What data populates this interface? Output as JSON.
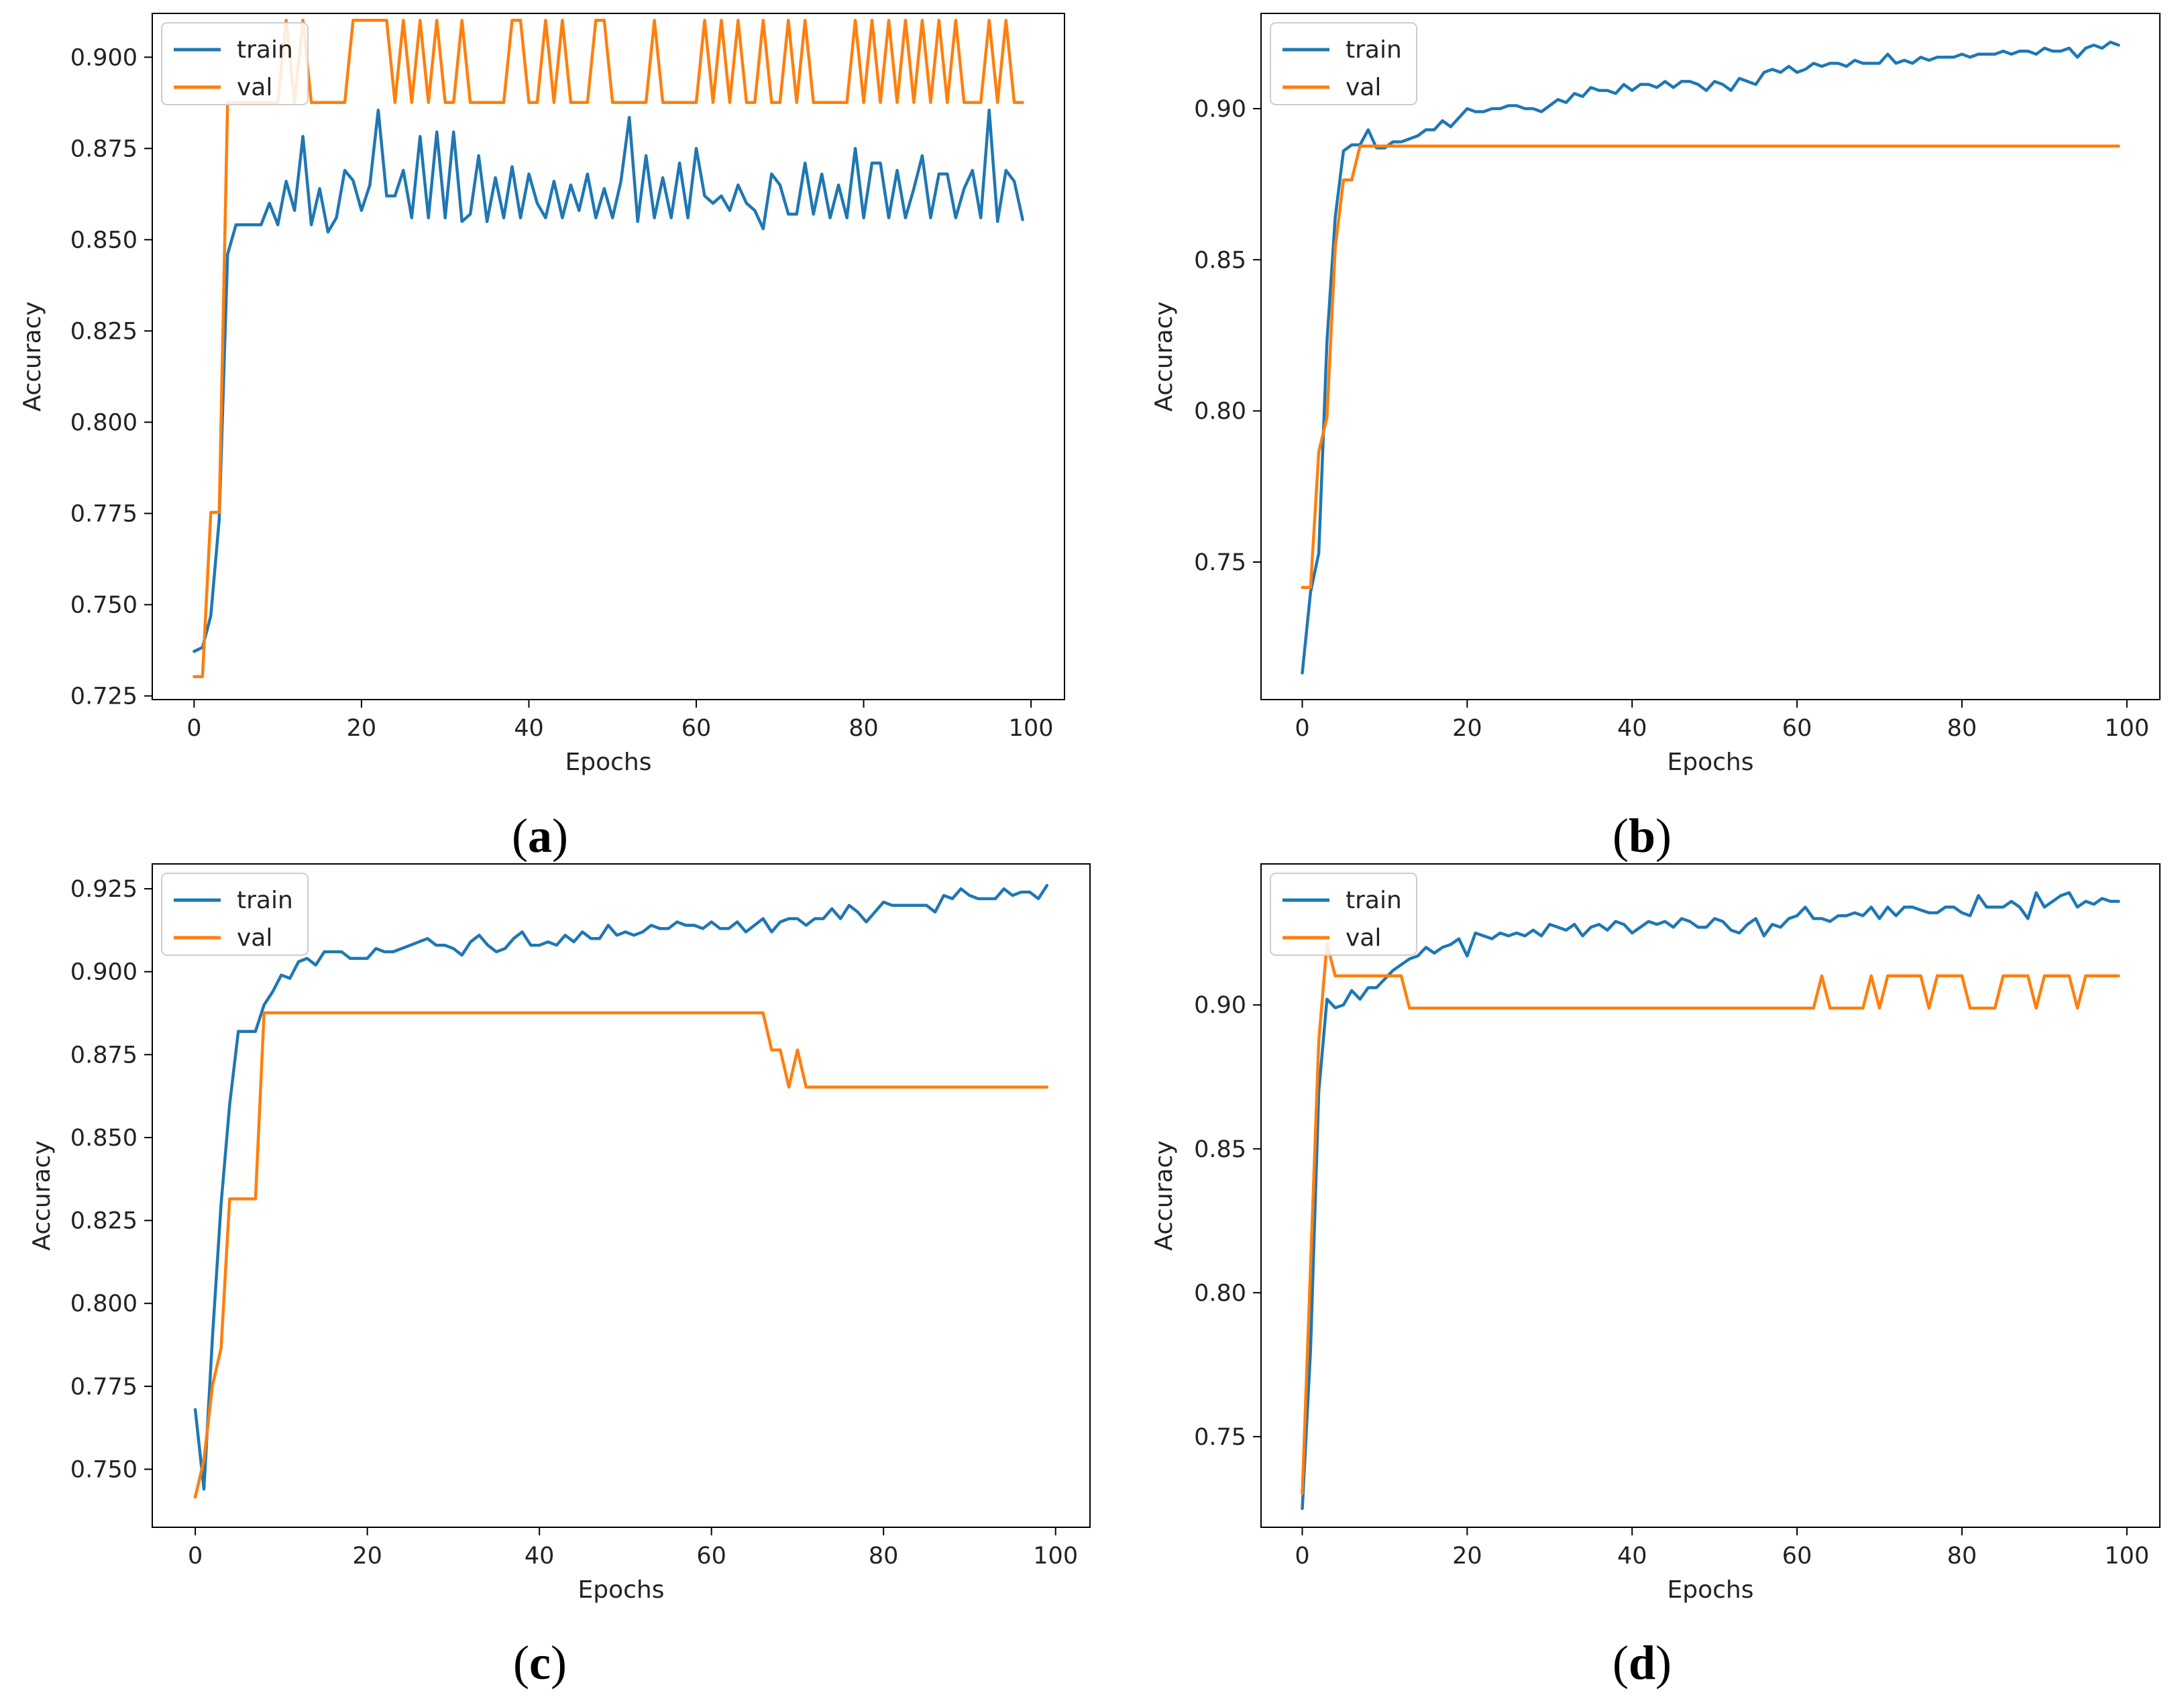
{
  "colors": {
    "train": "#1f77b4",
    "val": "#ff7f0e"
  },
  "chart_data": [
    {
      "type": "line",
      "caption": "a",
      "xlabel": "Epochs",
      "ylabel": "Accuracy",
      "xlim": [
        -5,
        104
      ],
      "ylim": [
        0.724,
        0.912
      ],
      "xticks": [
        0,
        20,
        40,
        60,
        80,
        100
      ],
      "yticks": [
        0.725,
        0.75,
        0.775,
        0.8,
        0.825,
        0.85,
        0.875,
        0.9
      ],
      "ytick_labels": [
        "0.725",
        "0.750",
        "0.775",
        "0.800",
        "0.825",
        "0.850",
        "0.875",
        "0.900"
      ],
      "legend": "top-left",
      "series": [
        {
          "name": "train",
          "key": "train",
          "values": [
            0.7372,
            0.7383,
            0.747,
            0.7733,
            0.846,
            0.8541,
            0.8541,
            0.8541,
            0.8541,
            0.86,
            0.8541,
            0.866,
            0.858,
            0.8783,
            0.8541,
            0.864,
            0.8521,
            0.856,
            0.869,
            0.8662,
            0.858,
            0.865,
            0.8855,
            0.862,
            0.862,
            0.869,
            0.856,
            0.8783,
            0.856,
            0.8795,
            0.856,
            0.8795,
            0.855,
            0.857,
            0.873,
            0.855,
            0.867,
            0.856,
            0.87,
            0.856,
            0.868,
            0.86,
            0.856,
            0.866,
            0.856,
            0.865,
            0.858,
            0.868,
            0.856,
            0.864,
            0.856,
            0.866,
            0.8835,
            0.855,
            0.873,
            0.856,
            0.867,
            0.856,
            0.871,
            0.856,
            0.875,
            0.862,
            0.86,
            0.862,
            0.858,
            0.865,
            0.86,
            0.858,
            0.853,
            0.868,
            0.865,
            0.857,
            0.857,
            0.871,
            0.857,
            0.868,
            0.856,
            0.865,
            0.856,
            0.875,
            0.856,
            0.871,
            0.871,
            0.856,
            0.869,
            0.856,
            0.864,
            0.873,
            0.856,
            0.868,
            0.868,
            0.856,
            0.864,
            0.869,
            0.856,
            0.8855,
            0.855,
            0.869,
            0.866,
            0.8555
          ]
        },
        {
          "name": "val",
          "key": "val",
          "values": [
            0.7303,
            0.7303,
            0.7753,
            0.7753,
            0.8876,
            0.8876,
            0.8876,
            0.8876,
            0.8876,
            0.8876,
            0.8876,
            0.9101,
            0.8876,
            0.9101,
            0.8876,
            0.8876,
            0.8876,
            0.8876,
            0.8876,
            0.9101,
            0.9101,
            0.9101,
            0.9101,
            0.9101,
            0.8876,
            0.9101,
            0.8876,
            0.9101,
            0.8876,
            0.9101,
            0.8876,
            0.8876,
            0.9101,
            0.8876,
            0.8876,
            0.8876,
            0.8876,
            0.8876,
            0.9101,
            0.9101,
            0.8876,
            0.8876,
            0.9101,
            0.8876,
            0.9101,
            0.8876,
            0.8876,
            0.8876,
            0.9101,
            0.9101,
            0.8876,
            0.8876,
            0.8876,
            0.8876,
            0.8876,
            0.9101,
            0.8876,
            0.8876,
            0.8876,
            0.8876,
            0.8876,
            0.9101,
            0.8876,
            0.9101,
            0.8876,
            0.9101,
            0.8876,
            0.8876,
            0.9101,
            0.8876,
            0.8876,
            0.9101,
            0.8876,
            0.9101,
            0.8876,
            0.8876,
            0.8876,
            0.8876,
            0.8876,
            0.9101,
            0.8876,
            0.9101,
            0.8876,
            0.9101,
            0.8876,
            0.9101,
            0.8876,
            0.9101,
            0.8876,
            0.9101,
            0.8876,
            0.9101,
            0.8876,
            0.8876,
            0.8876,
            0.9101,
            0.8876,
            0.9101,
            0.8876,
            0.8876
          ]
        }
      ]
    },
    {
      "type": "line",
      "caption": "b",
      "xlabel": "Epochs",
      "ylabel": "Accuracy",
      "xlim": [
        -5,
        104
      ],
      "ylim": [
        0.7045,
        0.9315
      ],
      "xticks": [
        0,
        20,
        40,
        60,
        80,
        100
      ],
      "yticks": [
        0.75,
        0.8,
        0.85,
        0.9
      ],
      "ytick_labels": [
        "0.75",
        "0.80",
        "0.85",
        "0.90"
      ],
      "legend": "top-left",
      "series": [
        {
          "name": "train",
          "key": "train",
          "values": [
            0.7133,
            0.74,
            0.753,
            0.823,
            0.864,
            0.886,
            0.888,
            0.888,
            0.893,
            0.887,
            0.887,
            0.889,
            0.889,
            0.89,
            0.891,
            0.893,
            0.893,
            0.896,
            0.894,
            0.897,
            0.9,
            0.899,
            0.899,
            0.9,
            0.9,
            0.901,
            0.901,
            0.9,
            0.9,
            0.899,
            0.901,
            0.903,
            0.902,
            0.905,
            0.904,
            0.907,
            0.906,
            0.906,
            0.905,
            0.908,
            0.906,
            0.908,
            0.908,
            0.907,
            0.909,
            0.907,
            0.909,
            0.909,
            0.908,
            0.906,
            0.909,
            0.908,
            0.906,
            0.91,
            0.909,
            0.908,
            0.912,
            0.913,
            0.912,
            0.914,
            0.912,
            0.913,
            0.915,
            0.914,
            0.915,
            0.915,
            0.914,
            0.916,
            0.915,
            0.915,
            0.915,
            0.918,
            0.915,
            0.916,
            0.915,
            0.917,
            0.916,
            0.917,
            0.917,
            0.917,
            0.918,
            0.917,
            0.918,
            0.918,
            0.918,
            0.919,
            0.918,
            0.919,
            0.919,
            0.918,
            0.92,
            0.919,
            0.919,
            0.92,
            0.917,
            0.92,
            0.921,
            0.92,
            0.922,
            0.921
          ]
        },
        {
          "name": "val",
          "key": "val",
          "values": [
            0.7416,
            0.7416,
            0.7865,
            0.7978,
            0.8539,
            0.8764,
            0.8764,
            0.8876,
            0.8876,
            0.8876,
            0.8876,
            0.8876,
            0.8876,
            0.8876,
            0.8876,
            0.8876,
            0.8876,
            0.8876,
            0.8876,
            0.8876,
            0.8876,
            0.8876,
            0.8876,
            0.8876,
            0.8876,
            0.8876,
            0.8876,
            0.8876,
            0.8876,
            0.8876,
            0.8876,
            0.8876,
            0.8876,
            0.8876,
            0.8876,
            0.8876,
            0.8876,
            0.8876,
            0.8876,
            0.8876,
            0.8876,
            0.8876,
            0.8876,
            0.8876,
            0.8876,
            0.8876,
            0.8876,
            0.8876,
            0.8876,
            0.8876,
            0.8876,
            0.8876,
            0.8876,
            0.8876,
            0.8876,
            0.8876,
            0.8876,
            0.8876,
            0.8876,
            0.8876,
            0.8876,
            0.8876,
            0.8876,
            0.8876,
            0.8876,
            0.8876,
            0.8876,
            0.8876,
            0.8876,
            0.8876,
            0.8876,
            0.8876,
            0.8876,
            0.8876,
            0.8876,
            0.8876,
            0.8876,
            0.8876,
            0.8876,
            0.8876,
            0.8876,
            0.8876,
            0.8876,
            0.8876,
            0.8876,
            0.8876,
            0.8876,
            0.8876,
            0.8876,
            0.8876,
            0.8876,
            0.8876,
            0.8876,
            0.8876,
            0.8876,
            0.8876,
            0.8876,
            0.8876,
            0.8876,
            0.8876
          ]
        }
      ]
    },
    {
      "type": "line",
      "caption": "c",
      "xlabel": "Epochs",
      "ylabel": "Accuracy",
      "xlim": [
        -5,
        104
      ],
      "ylim": [
        0.7325,
        0.9325
      ],
      "xticks": [
        0,
        20,
        40,
        60,
        80,
        100
      ],
      "yticks": [
        0.75,
        0.775,
        0.8,
        0.825,
        0.85,
        0.875,
        0.9,
        0.925
      ],
      "ytick_labels": [
        "0.750",
        "0.775",
        "0.800",
        "0.825",
        "0.850",
        "0.875",
        "0.900",
        "0.925"
      ],
      "legend": "top-left",
      "series": [
        {
          "name": "train",
          "key": "train",
          "values": [
            0.768,
            0.744,
            0.79,
            0.83,
            0.86,
            0.882,
            0.882,
            0.882,
            0.89,
            0.894,
            0.899,
            0.898,
            0.903,
            0.904,
            0.902,
            0.906,
            0.906,
            0.906,
            0.904,
            0.904,
            0.904,
            0.907,
            0.906,
            0.906,
            0.907,
            0.908,
            0.909,
            0.91,
            0.908,
            0.908,
            0.907,
            0.905,
            0.909,
            0.911,
            0.908,
            0.906,
            0.907,
            0.91,
            0.912,
            0.908,
            0.908,
            0.909,
            0.908,
            0.911,
            0.909,
            0.912,
            0.91,
            0.91,
            0.914,
            0.911,
            0.912,
            0.911,
            0.912,
            0.914,
            0.913,
            0.913,
            0.915,
            0.914,
            0.914,
            0.913,
            0.915,
            0.913,
            0.913,
            0.915,
            0.912,
            0.914,
            0.916,
            0.912,
            0.915,
            0.916,
            0.916,
            0.914,
            0.916,
            0.916,
            0.919,
            0.916,
            0.92,
            0.918,
            0.915,
            0.918,
            0.921,
            0.92,
            0.92,
            0.92,
            0.92,
            0.92,
            0.918,
            0.923,
            0.922,
            0.925,
            0.923,
            0.922,
            0.922,
            0.922,
            0.925,
            0.923,
            0.924,
            0.924,
            0.922,
            0.926
          ]
        },
        {
          "name": "val",
          "key": "val",
          "values": [
            0.7416,
            0.7528,
            0.7753,
            0.7865,
            0.8315,
            0.8315,
            0.8315,
            0.8315,
            0.8876,
            0.8876,
            0.8876,
            0.8876,
            0.8876,
            0.8876,
            0.8876,
            0.8876,
            0.8876,
            0.8876,
            0.8876,
            0.8876,
            0.8876,
            0.8876,
            0.8876,
            0.8876,
            0.8876,
            0.8876,
            0.8876,
            0.8876,
            0.8876,
            0.8876,
            0.8876,
            0.8876,
            0.8876,
            0.8876,
            0.8876,
            0.8876,
            0.8876,
            0.8876,
            0.8876,
            0.8876,
            0.8876,
            0.8876,
            0.8876,
            0.8876,
            0.8876,
            0.8876,
            0.8876,
            0.8876,
            0.8876,
            0.8876,
            0.8876,
            0.8876,
            0.8876,
            0.8876,
            0.8876,
            0.8876,
            0.8876,
            0.8876,
            0.8876,
            0.8876,
            0.8876,
            0.8876,
            0.8876,
            0.8876,
            0.8876,
            0.8876,
            0.8876,
            0.8764,
            0.8764,
            0.8652,
            0.8764,
            0.8652,
            0.8652,
            0.8652,
            0.8652,
            0.8652,
            0.8652,
            0.8652,
            0.8652,
            0.8652,
            0.8652,
            0.8652,
            0.8652,
            0.8652,
            0.8652,
            0.8652,
            0.8652,
            0.8652,
            0.8652,
            0.8652,
            0.8652,
            0.8652,
            0.8652,
            0.8652,
            0.8652,
            0.8652,
            0.8652,
            0.8652,
            0.8652,
            0.8652
          ]
        }
      ]
    },
    {
      "type": "line",
      "caption": "d",
      "xlabel": "Epochs",
      "ylabel": "Accuracy",
      "xlim": [
        -5,
        104
      ],
      "ylim": [
        0.7185,
        0.949
      ],
      "xticks": [
        0,
        20,
        40,
        60,
        80,
        100
      ],
      "yticks": [
        0.75,
        0.8,
        0.85,
        0.9
      ],
      "ytick_labels": [
        "0.75",
        "0.80",
        "0.85",
        "0.90"
      ],
      "legend": "top-left",
      "series": [
        {
          "name": "train",
          "key": "train",
          "values": [
            0.725,
            0.78,
            0.87,
            0.902,
            0.899,
            0.9,
            0.905,
            0.902,
            0.906,
            0.906,
            0.909,
            0.912,
            0.914,
            0.916,
            0.917,
            0.92,
            0.918,
            0.92,
            0.921,
            0.923,
            0.917,
            0.925,
            0.924,
            0.923,
            0.925,
            0.924,
            0.925,
            0.924,
            0.926,
            0.924,
            0.928,
            0.927,
            0.926,
            0.928,
            0.924,
            0.927,
            0.928,
            0.926,
            0.929,
            0.928,
            0.925,
            0.927,
            0.929,
            0.928,
            0.929,
            0.927,
            0.93,
            0.929,
            0.927,
            0.927,
            0.93,
            0.929,
            0.926,
            0.925,
            0.928,
            0.93,
            0.924,
            0.928,
            0.927,
            0.93,
            0.931,
            0.934,
            0.93,
            0.93,
            0.929,
            0.931,
            0.931,
            0.932,
            0.931,
            0.934,
            0.93,
            0.934,
            0.931,
            0.934,
            0.934,
            0.933,
            0.932,
            0.932,
            0.934,
            0.934,
            0.932,
            0.931,
            0.938,
            0.934,
            0.934,
            0.934,
            0.936,
            0.934,
            0.93,
            0.939,
            0.934,
            0.936,
            0.938,
            0.939,
            0.934,
            0.936,
            0.935,
            0.937,
            0.936,
            0.936
          ]
        },
        {
          "name": "val",
          "key": "val",
          "values": [
            0.7303,
            0.809,
            0.8876,
            0.9213,
            0.9101,
            0.9101,
            0.9101,
            0.9101,
            0.9101,
            0.9101,
            0.9101,
            0.9101,
            0.9101,
            0.8989,
            0.8989,
            0.8989,
            0.8989,
            0.8989,
            0.8989,
            0.8989,
            0.8989,
            0.8989,
            0.8989,
            0.8989,
            0.8989,
            0.8989,
            0.8989,
            0.8989,
            0.8989,
            0.8989,
            0.8989,
            0.8989,
            0.8989,
            0.8989,
            0.8989,
            0.8989,
            0.8989,
            0.8989,
            0.8989,
            0.8989,
            0.8989,
            0.8989,
            0.8989,
            0.8989,
            0.8989,
            0.8989,
            0.8989,
            0.8989,
            0.8989,
            0.8989,
            0.8989,
            0.8989,
            0.8989,
            0.8989,
            0.8989,
            0.8989,
            0.8989,
            0.8989,
            0.8989,
            0.8989,
            0.8989,
            0.8989,
            0.8989,
            0.9101,
            0.8989,
            0.8989,
            0.8989,
            0.8989,
            0.8989,
            0.9101,
            0.8989,
            0.9101,
            0.9101,
            0.9101,
            0.9101,
            0.9101,
            0.8989,
            0.9101,
            0.9101,
            0.9101,
            0.9101,
            0.8989,
            0.8989,
            0.8989,
            0.8989,
            0.9101,
            0.9101,
            0.9101,
            0.9101,
            0.8989,
            0.9101,
            0.9101,
            0.9101,
            0.9101,
            0.8989,
            0.9101,
            0.9101,
            0.9101,
            0.9101,
            0.9101
          ]
        }
      ]
    }
  ]
}
